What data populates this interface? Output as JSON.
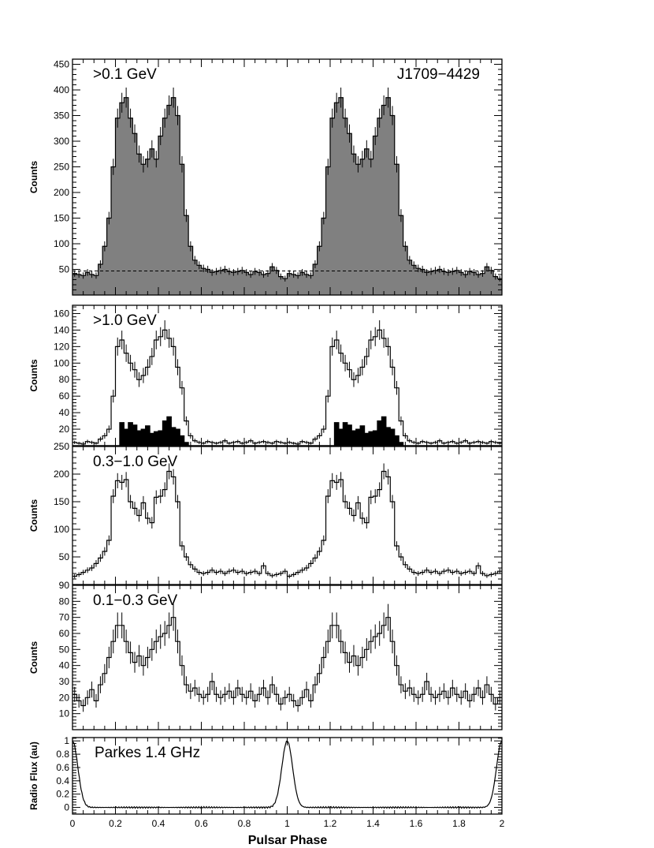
{
  "figure": {
    "x_axis_label": "Pulsar Phase",
    "x_ticks": [
      "0",
      "0.2",
      "0.4",
      "0.6",
      "0.8",
      "1",
      "1.2",
      "1.4",
      "1.6",
      "1.8",
      "2"
    ]
  },
  "chart_data": [
    {
      "type": "histogram",
      "title": ">0.1 GeV",
      "annotation": "J1709−4429",
      "ylabel": "Counts",
      "xlim": [
        0,
        2
      ],
      "ylim": [
        0,
        460
      ],
      "yticks": [
        50,
        100,
        150,
        200,
        250,
        300,
        350,
        400,
        450
      ],
      "background_level": 47,
      "fill": "#808080",
      "x": [
        0.01,
        0.03,
        0.05,
        0.07,
        0.09,
        0.11,
        0.13,
        0.15,
        0.17,
        0.19,
        0.21,
        0.23,
        0.25,
        0.27,
        0.29,
        0.31,
        0.33,
        0.35,
        0.37,
        0.39,
        0.41,
        0.43,
        0.45,
        0.47,
        0.49,
        0.51,
        0.53,
        0.55,
        0.57,
        0.59,
        0.61,
        0.63,
        0.65,
        0.67,
        0.69,
        0.71,
        0.73,
        0.75,
        0.77,
        0.79,
        0.81,
        0.83,
        0.85,
        0.87,
        0.89,
        0.91,
        0.93,
        0.95,
        0.97,
        0.99
      ],
      "series": [
        {
          "name": "",
          "values": [
            42,
            40,
            38,
            44,
            40,
            38,
            60,
            95,
            150,
            250,
            345,
            375,
            385,
            345,
            315,
            275,
            255,
            265,
            285,
            265,
            310,
            345,
            370,
            385,
            350,
            255,
            155,
            95,
            68,
            58,
            52,
            50,
            44,
            46,
            48,
            50,
            46,
            44,
            46,
            48,
            44,
            40,
            46,
            44,
            40,
            42,
            55,
            48,
            36,
            32
          ]
        }
      ]
    },
    {
      "type": "histogram",
      "title": ">1.0 GeV",
      "ylabel": "Counts",
      "xlim": [
        0,
        2
      ],
      "ylim": [
        0,
        170
      ],
      "yticks": [
        20,
        40,
        60,
        80,
        100,
        120,
        140,
        160
      ],
      "x": [
        0.01,
        0.03,
        0.05,
        0.07,
        0.09,
        0.11,
        0.13,
        0.15,
        0.17,
        0.19,
        0.21,
        0.23,
        0.25,
        0.27,
        0.29,
        0.31,
        0.33,
        0.35,
        0.37,
        0.39,
        0.41,
        0.43,
        0.45,
        0.47,
        0.49,
        0.51,
        0.53,
        0.55,
        0.57,
        0.59,
        0.61,
        0.63,
        0.65,
        0.67,
        0.69,
        0.71,
        0.73,
        0.75,
        0.77,
        0.79,
        0.81,
        0.83,
        0.85,
        0.87,
        0.89,
        0.91,
        0.93,
        0.95,
        0.97,
        0.99
      ],
      "series": [
        {
          "name": "",
          "values": [
            4,
            3,
            2,
            5,
            4,
            3,
            8,
            12,
            20,
            60,
            120,
            128,
            112,
            100,
            92,
            80,
            85,
            95,
            108,
            128,
            132,
            140,
            130,
            120,
            95,
            70,
            30,
            12,
            6,
            4,
            3,
            5,
            4,
            3,
            4,
            6,
            3,
            4,
            5,
            3,
            4,
            6,
            3,
            4,
            5,
            4,
            3,
            5,
            4,
            3
          ]
        },
        {
          "name": "",
          "fill": "#000000",
          "values": [
            0,
            0,
            0,
            0,
            0,
            0,
            0,
            0,
            0,
            0,
            0,
            28,
            20,
            28,
            25,
            18,
            20,
            24,
            15,
            17,
            18,
            30,
            35,
            22,
            20,
            12,
            4,
            0,
            0,
            0,
            0,
            0,
            0,
            0,
            0,
            0,
            0,
            0,
            0,
            0,
            0,
            0,
            0,
            0,
            0,
            0,
            0,
            0,
            0,
            0
          ]
        }
      ]
    },
    {
      "type": "histogram",
      "title": "0.3−1.0 GeV",
      "ylabel": "Counts",
      "xlim": [
        0,
        2
      ],
      "ylim": [
        0,
        250
      ],
      "yticks": [
        50,
        100,
        150,
        200,
        250
      ],
      "x": [
        0.01,
        0.03,
        0.05,
        0.07,
        0.09,
        0.11,
        0.13,
        0.15,
        0.17,
        0.19,
        0.21,
        0.23,
        0.25,
        0.27,
        0.29,
        0.31,
        0.33,
        0.35,
        0.37,
        0.39,
        0.41,
        0.43,
        0.45,
        0.47,
        0.49,
        0.51,
        0.53,
        0.55,
        0.57,
        0.59,
        0.61,
        0.63,
        0.65,
        0.67,
        0.69,
        0.71,
        0.73,
        0.75,
        0.77,
        0.79,
        0.81,
        0.83,
        0.85,
        0.87,
        0.89,
        0.91,
        0.93,
        0.95,
        0.97,
        0.99
      ],
      "series": [
        {
          "name": "",
          "values": [
            15,
            18,
            22,
            26,
            30,
            38,
            48,
            60,
            80,
            160,
            188,
            185,
            190,
            150,
            138,
            125,
            148,
            120,
            112,
            158,
            160,
            172,
            205,
            195,
            150,
            70,
            50,
            36,
            28,
            22,
            20,
            22,
            26,
            22,
            24,
            20,
            24,
            26,
            22,
            24,
            20,
            22,
            24,
            20,
            34,
            20,
            16,
            18,
            20,
            24
          ]
        }
      ]
    },
    {
      "type": "histogram",
      "title": "0.1−0.3 GeV",
      "ylabel": "Counts",
      "xlim": [
        0,
        2
      ],
      "ylim": [
        0,
        90
      ],
      "yticks": [
        10,
        20,
        30,
        40,
        50,
        60,
        70,
        80,
        90
      ],
      "x": [
        0.01,
        0.03,
        0.05,
        0.07,
        0.09,
        0.11,
        0.13,
        0.15,
        0.17,
        0.19,
        0.21,
        0.23,
        0.25,
        0.27,
        0.29,
        0.31,
        0.33,
        0.35,
        0.37,
        0.39,
        0.41,
        0.43,
        0.45,
        0.47,
        0.49,
        0.51,
        0.53,
        0.55,
        0.57,
        0.59,
        0.61,
        0.63,
        0.65,
        0.67,
        0.69,
        0.71,
        0.73,
        0.75,
        0.77,
        0.79,
        0.81,
        0.83,
        0.85,
        0.87,
        0.89,
        0.91,
        0.93,
        0.95,
        0.97,
        0.99
      ],
      "series": [
        {
          "name": "",
          "values": [
            22,
            18,
            15,
            20,
            25,
            18,
            28,
            35,
            45,
            55,
            65,
            65,
            55,
            48,
            42,
            46,
            40,
            45,
            50,
            55,
            58,
            60,
            65,
            70,
            55,
            40,
            28,
            24,
            26,
            22,
            20,
            22,
            30,
            22,
            20,
            22,
            24,
            20,
            26,
            22,
            20,
            24,
            18,
            22,
            26,
            20,
            28,
            22,
            16,
            20
          ]
        }
      ]
    },
    {
      "type": "line",
      "title": "Parkes 1.4 GHz",
      "ylabel": "Radio Flux (au)",
      "xlim": [
        0,
        2
      ],
      "ylim": [
        -0.1,
        1.05
      ],
      "yticks": [
        0,
        0.2,
        0.4,
        0.6,
        0.8,
        1
      ],
      "peak_phase": 1.0,
      "peak_width": 0.025,
      "baseline": 0.0,
      "peak_value": 1.0
    }
  ]
}
